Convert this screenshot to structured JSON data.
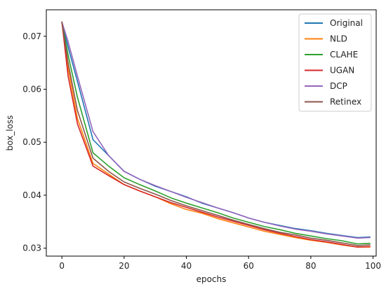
{
  "chart_data": {
    "type": "line",
    "title": "",
    "xlabel": "epochs",
    "ylabel": "box_loss",
    "xlim": [
      -5,
      101
    ],
    "ylim": [
      0.0285,
      0.075
    ],
    "xticks": [
      0,
      20,
      40,
      60,
      80,
      100
    ],
    "yticks": [
      0.03,
      0.04,
      0.05,
      0.06,
      0.07
    ],
    "xtick_labels": [
      "0",
      "20",
      "40",
      "60",
      "80",
      "100"
    ],
    "ytick_labels": [
      "0.03",
      "0.04",
      "0.05",
      "0.06",
      "0.07"
    ],
    "grid": false,
    "legend_position": "top-right",
    "series": [
      {
        "name": "Original",
        "color": "#1f77b4",
        "x": [
          0,
          2,
          5,
          10,
          15,
          20,
          25,
          30,
          35,
          40,
          45,
          50,
          55,
          60,
          65,
          70,
          75,
          80,
          85,
          90,
          95,
          99
        ],
        "y": [
          0.0727,
          0.068,
          0.0615,
          0.0505,
          0.0475,
          0.0445,
          0.043,
          0.0417,
          0.0407,
          0.0397,
          0.0385,
          0.0376,
          0.0367,
          0.0357,
          0.0349,
          0.0343,
          0.0337,
          0.0333,
          0.0328,
          0.0324,
          0.032,
          0.0321
        ]
      },
      {
        "name": "NLD",
        "color": "#ff7f0e",
        "x": [
          0,
          2,
          5,
          10,
          15,
          20,
          25,
          30,
          35,
          40,
          45,
          50,
          55,
          60,
          65,
          70,
          75,
          80,
          85,
          90,
          95,
          99
        ],
        "y": [
          0.0727,
          0.064,
          0.0545,
          0.046,
          0.044,
          0.042,
          0.0408,
          0.0397,
          0.0384,
          0.0373,
          0.0366,
          0.0356,
          0.0348,
          0.034,
          0.0332,
          0.0326,
          0.032,
          0.0315,
          0.0311,
          0.0306,
          0.0302,
          0.0302
        ]
      },
      {
        "name": "CLAHE",
        "color": "#2ca02c",
        "x": [
          0,
          2,
          5,
          10,
          15,
          20,
          25,
          30,
          35,
          40,
          45,
          50,
          55,
          60,
          65,
          70,
          75,
          80,
          85,
          90,
          95,
          99
        ],
        "y": [
          0.0727,
          0.0665,
          0.0585,
          0.048,
          0.0455,
          0.0433,
          0.042,
          0.0408,
          0.0395,
          0.0385,
          0.0376,
          0.0367,
          0.0357,
          0.0349,
          0.0341,
          0.0335,
          0.0328,
          0.0323,
          0.0318,
          0.0314,
          0.0308,
          0.0309
        ]
      },
      {
        "name": "UGAN",
        "color": "#d62728",
        "x": [
          0,
          2,
          5,
          10,
          15,
          20,
          25,
          30,
          35,
          40,
          45,
          50,
          55,
          60,
          65,
          70,
          75,
          80,
          85,
          90,
          95,
          99
        ],
        "y": [
          0.0727,
          0.0625,
          0.0535,
          0.0455,
          0.0437,
          0.042,
          0.0408,
          0.0397,
          0.0386,
          0.0377,
          0.0368,
          0.0359,
          0.0351,
          0.0343,
          0.0335,
          0.0328,
          0.0322,
          0.0316,
          0.0312,
          0.0307,
          0.0302,
          0.0303
        ]
      },
      {
        "name": "DCP",
        "color": "#9467bd",
        "x": [
          0,
          2,
          5,
          10,
          15,
          20,
          25,
          30,
          35,
          40,
          45,
          50,
          55,
          60,
          65,
          70,
          75,
          80,
          85,
          90,
          95,
          99
        ],
        "y": [
          0.0727,
          0.069,
          0.0625,
          0.052,
          0.0475,
          0.0445,
          0.043,
          0.0418,
          0.0407,
          0.0396,
          0.0386,
          0.0376,
          0.0367,
          0.0357,
          0.0349,
          0.0342,
          0.0336,
          0.0332,
          0.0327,
          0.0323,
          0.0319,
          0.032
        ]
      },
      {
        "name": "Retinex",
        "color": "#8c564b",
        "x": [
          0,
          2,
          5,
          10,
          15,
          20,
          25,
          30,
          35,
          40,
          45,
          50,
          55,
          60,
          65,
          70,
          75,
          80,
          85,
          90,
          95,
          99
        ],
        "y": [
          0.0727,
          0.065,
          0.056,
          0.047,
          0.0445,
          0.0425,
          0.0413,
          0.0402,
          0.039,
          0.038,
          0.0371,
          0.0362,
          0.0353,
          0.0345,
          0.0337,
          0.033,
          0.0325,
          0.0319,
          0.0315,
          0.031,
          0.0305,
          0.0306
        ]
      }
    ]
  }
}
